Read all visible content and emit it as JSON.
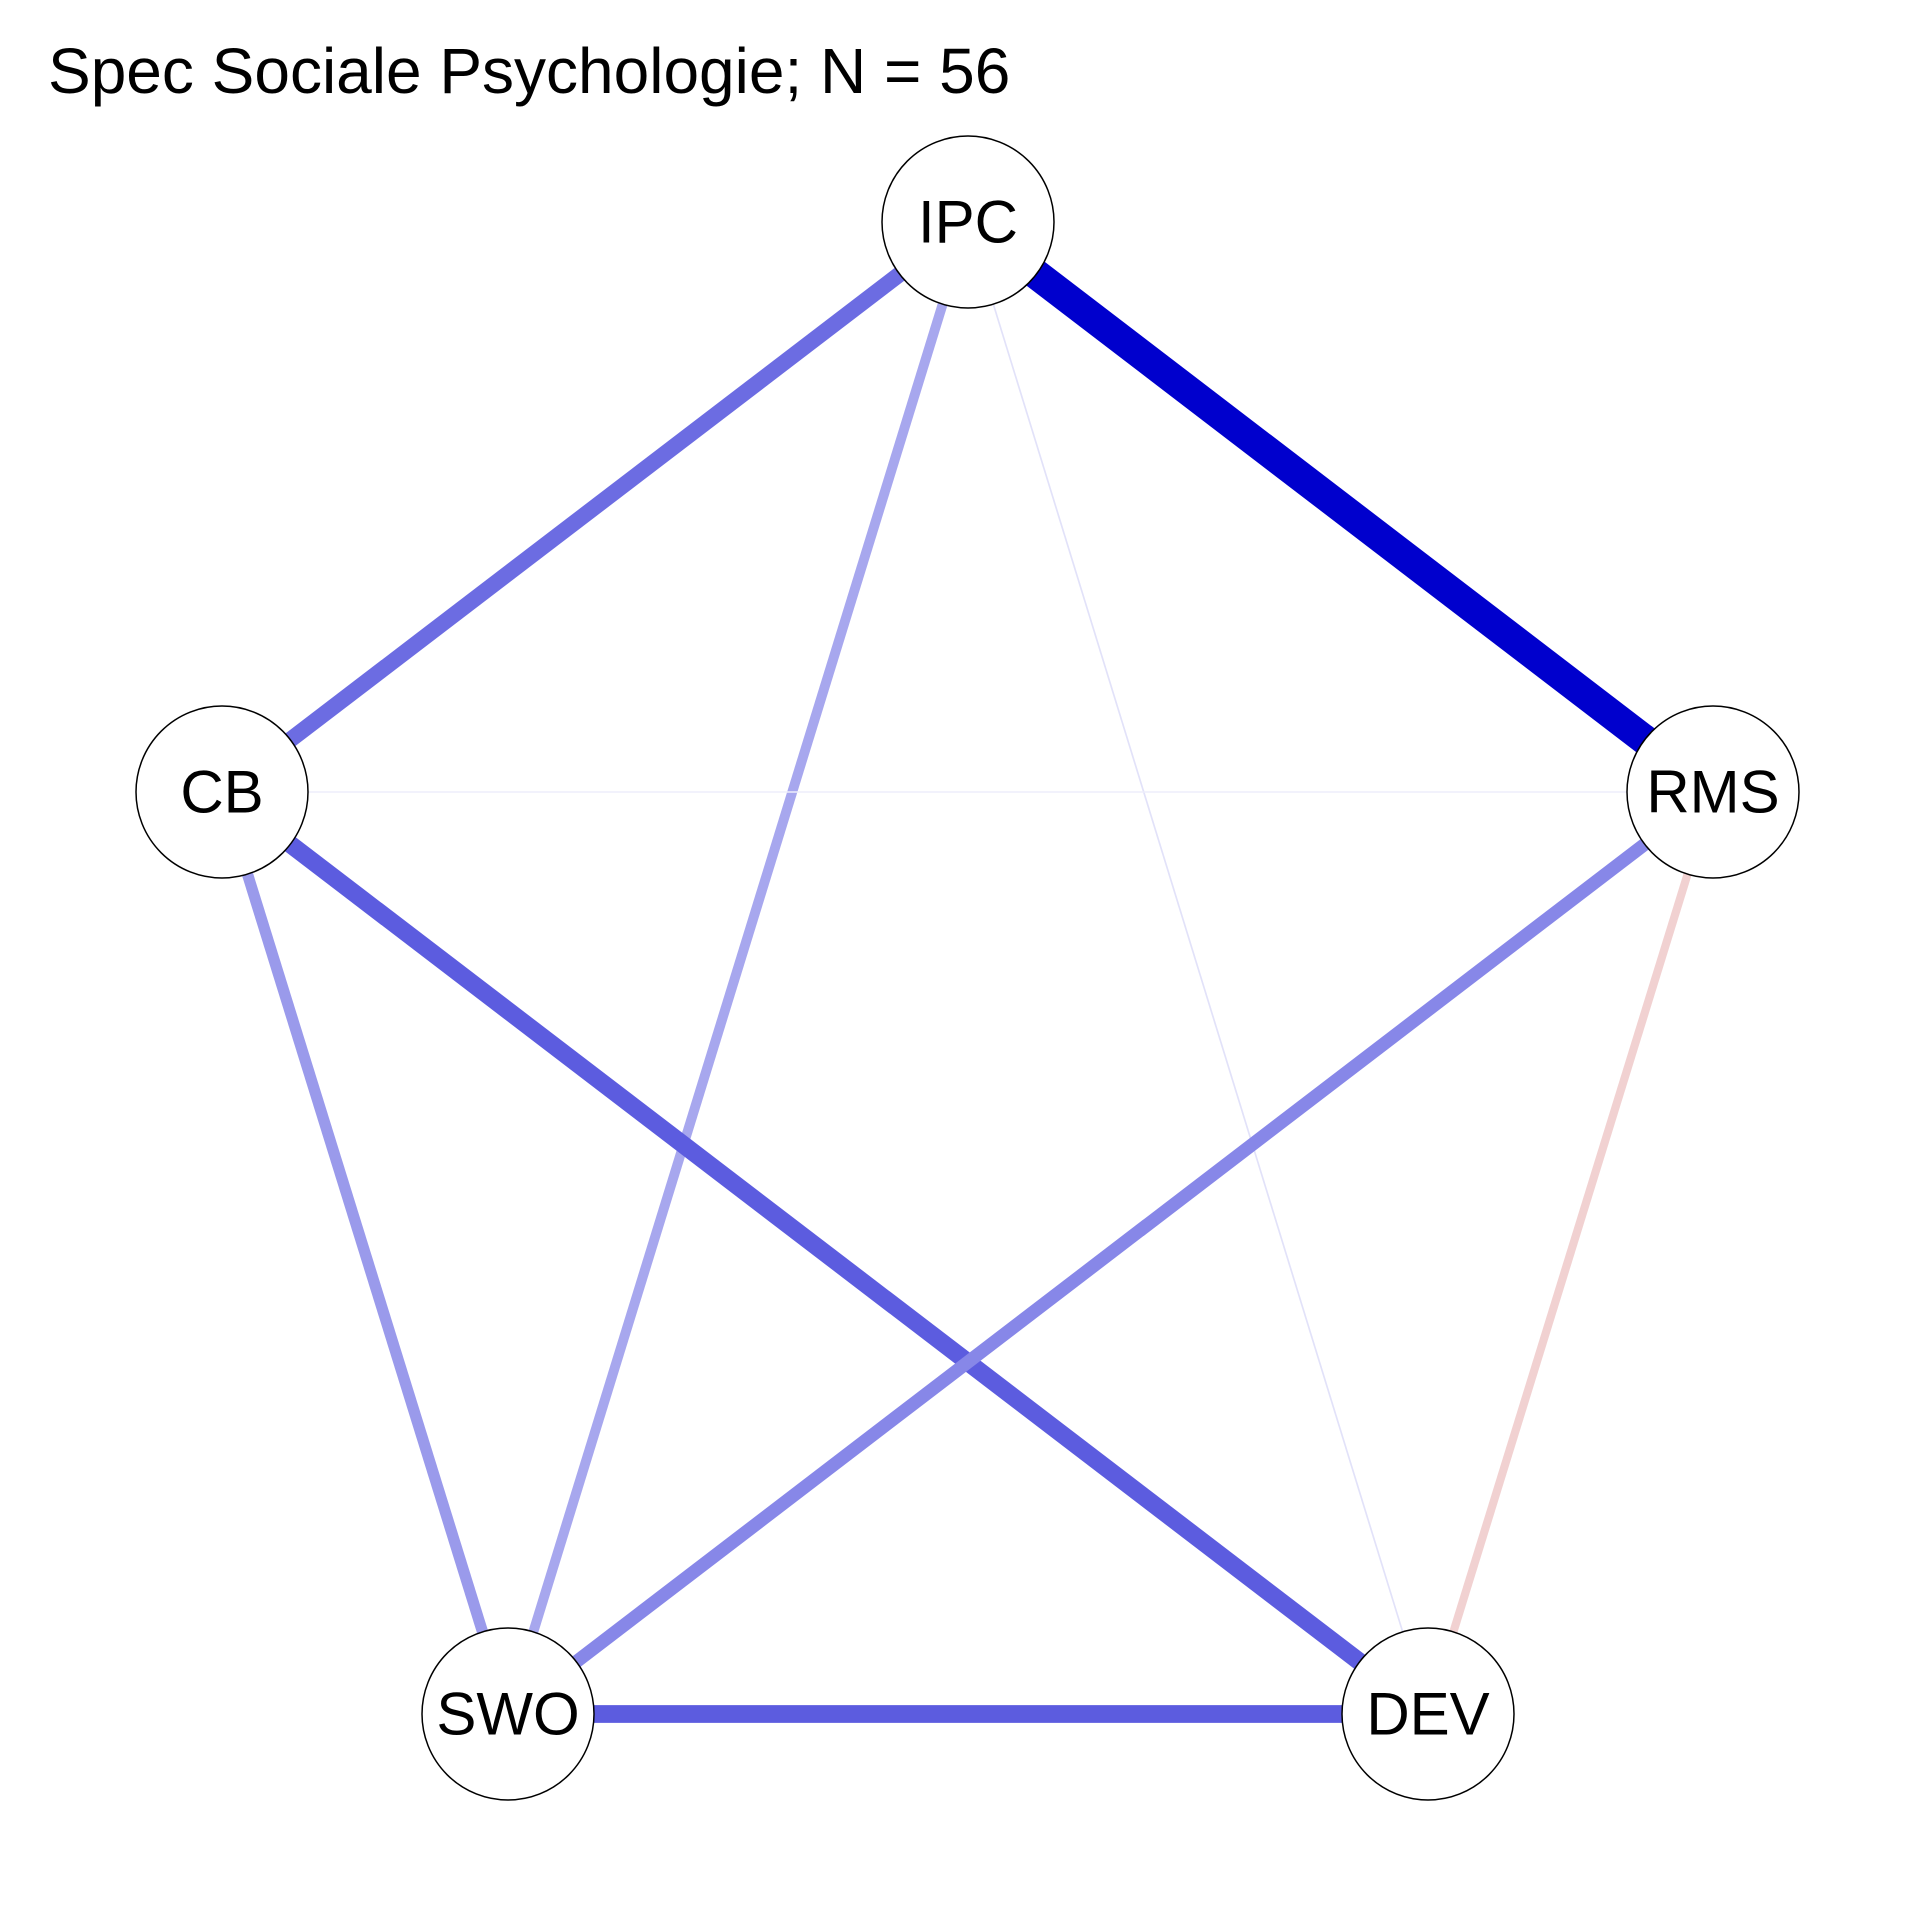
{
  "title": "Spec Sociale Psychologie; N = 56",
  "colors": {
    "background": "#ffffff",
    "node_fill": "#ffffff",
    "node_border": "#000000",
    "positive_edge": "#0000cd",
    "negative_edge": "#cd5c5c"
  },
  "nodes": [
    {
      "id": "IPC",
      "label": "IPC"
    },
    {
      "id": "RMS",
      "label": "RMS"
    },
    {
      "id": "DEV",
      "label": "DEV"
    },
    {
      "id": "SWO",
      "label": "SWO"
    },
    {
      "id": "CB",
      "label": "CB"
    }
  ],
  "edges": [
    {
      "from": "IPC",
      "to": "RMS",
      "sign": "positive",
      "strength": 1.0
    },
    {
      "from": "IPC",
      "to": "CB",
      "sign": "positive",
      "strength": 0.5
    },
    {
      "from": "IPC",
      "to": "SWO",
      "sign": "positive",
      "strength": 0.28
    },
    {
      "from": "IPC",
      "to": "DEV",
      "sign": "positive",
      "strength": 0.06
    },
    {
      "from": "CB",
      "to": "RMS",
      "sign": "positive",
      "strength": 0.02
    },
    {
      "from": "CB",
      "to": "SWO",
      "sign": "positive",
      "strength": 0.33
    },
    {
      "from": "CB",
      "to": "DEV",
      "sign": "positive",
      "strength": 0.56
    },
    {
      "from": "RMS",
      "to": "SWO",
      "sign": "positive",
      "strength": 0.4
    },
    {
      "from": "RMS",
      "to": "DEV",
      "sign": "negative",
      "strength": 0.22
    },
    {
      "from": "SWO",
      "to": "DEV",
      "sign": "positive",
      "strength": 0.56
    }
  ]
}
